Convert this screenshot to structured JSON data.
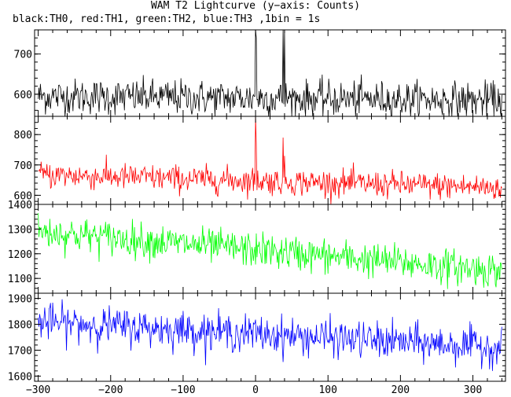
{
  "title": "WAM T2 Lightcurve (y−axis: Counts)",
  "subtitle": "black:TH0, red:TH1, green:TH2, blue:TH3 ,1bin = 1s",
  "chart_data": [
    {
      "type": "line",
      "panel": "TH0",
      "color": "#000000",
      "xlim": [
        -305,
        345
      ],
      "ylim": [
        545,
        760
      ],
      "x_ticks": [
        -300,
        -200,
        -100,
        0,
        100,
        200,
        300
      ],
      "y_ticks": [
        600,
        700
      ],
      "series": [
        {
          "trend": [
            [
              -300,
              595
            ],
            [
              340,
              585
            ]
          ],
          "noise_sd": 22,
          "spikes": [
            [
              0,
              780
            ],
            [
              1,
              740
            ],
            [
              38,
              790
            ],
            [
              40,
              760
            ]
          ]
        }
      ]
    },
    {
      "type": "line",
      "panel": "TH1",
      "color": "#ff0000",
      "xlim": [
        -305,
        345
      ],
      "ylim": [
        570,
        860
      ],
      "x_ticks": [
        -300,
        -200,
        -100,
        0,
        100,
        200,
        300
      ],
      "y_ticks": [
        600,
        700,
        800
      ],
      "series": [
        {
          "trend": [
            [
              -300,
              668
            ],
            [
              340,
              625
            ]
          ],
          "noise_sd": 22,
          "spikes": [
            [
              0,
              860
            ],
            [
              1,
              770
            ],
            [
              38,
              790
            ],
            [
              40,
              730
            ]
          ]
        }
      ]
    },
    {
      "type": "line",
      "panel": "TH2",
      "color": "#00ff00",
      "xlim": [
        -305,
        345
      ],
      "ylim": [
        1040,
        1400
      ],
      "x_ticks": [
        -300,
        -200,
        -100,
        0,
        100,
        200,
        300
      ],
      "y_ticks": [
        1100,
        1200,
        1300,
        1400
      ],
      "series": [
        {
          "trend": [
            [
              -300,
              1290
            ],
            [
              340,
              1130
            ]
          ],
          "noise_sd": 35,
          "spikes": []
        }
      ]
    },
    {
      "type": "line",
      "panel": "TH3",
      "color": "#0000ff",
      "xlim": [
        -305,
        345
      ],
      "ylim": [
        1580,
        1920
      ],
      "x_ticks": [
        -300,
        -200,
        -100,
        0,
        100,
        200,
        300
      ],
      "y_ticks": [
        1600,
        1700,
        1800,
        1900
      ],
      "series": [
        {
          "trend": [
            [
              -300,
              1810
            ],
            [
              340,
              1710
            ]
          ],
          "noise_sd": 35,
          "spikes": []
        }
      ]
    }
  ]
}
